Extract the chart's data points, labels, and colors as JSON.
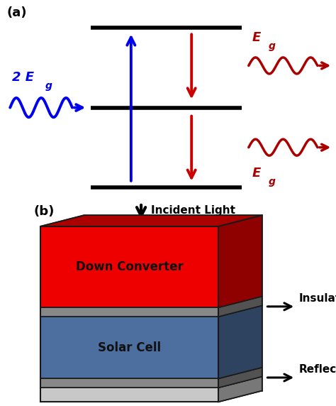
{
  "bg_color": "#ffffff",
  "panel_a_label": "(a)",
  "panel_b_label": "(b)",
  "blue_color": "#0000ee",
  "red_color": "#cc0000",
  "dark_red_color": "#aa0000",
  "line_color": "#000000",
  "box_red": "#ee0000",
  "box_blue": "#4d6fa0",
  "box_gray": "#888888",
  "box_light_gray": "#c8c8c8",
  "box_dark_outline": "#1a1a1a",
  "incident_label": "Incident Light",
  "down_converter_label": "Down Converter",
  "solar_cell_label": "Solar Cell",
  "insulator_label": "Insulator",
  "reflector_label": "Reflector",
  "label_2Eg": "2 E",
  "label_g1": "g",
  "label_Eg_top": "E",
  "label_Eg_bot": "E",
  "label_g_top": "g",
  "label_g_bot": "g"
}
